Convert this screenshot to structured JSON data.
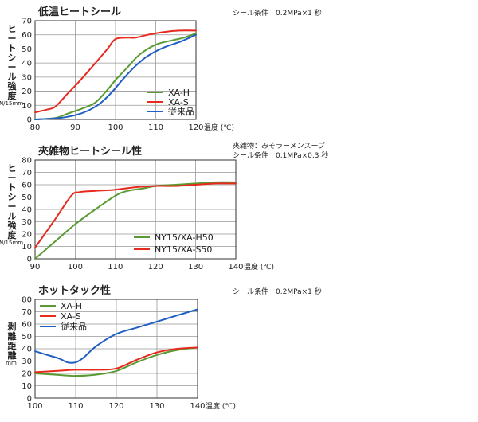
{
  "chart_data": [
    {
      "type": "line",
      "title": "低温ヒートシール",
      "condition": [
        "シール条件　0.2MPa×1 秒"
      ],
      "ylabel": "ヒートシール強度",
      "yunit": "N/15mm",
      "xlabel": "温度 (℃)",
      "xlim": [
        80,
        120
      ],
      "ylim": [
        0,
        70
      ],
      "xticks": [
        80,
        90,
        100,
        110,
        120
      ],
      "yticks": [
        0,
        10,
        20,
        30,
        40,
        50,
        60,
        70
      ],
      "grid": true,
      "legend": "bottom-right",
      "series": [
        {
          "name": "XA-H",
          "color": "#5a9a32",
          "points": [
            [
              80,
              0
            ],
            [
              85,
              1
            ],
            [
              88,
              4
            ],
            [
              92,
              8
            ],
            [
              95,
              12
            ],
            [
              98,
              21
            ],
            [
              100,
              28
            ],
            [
              103,
              37
            ],
            [
              106,
              46
            ],
            [
              110,
              53
            ],
            [
              114,
              56
            ],
            [
              117,
              58
            ],
            [
              120,
              61
            ]
          ]
        },
        {
          "name": "XA-S",
          "color": "#e62a1e",
          "points": [
            [
              80,
              5
            ],
            [
              83,
              7
            ],
            [
              85,
              9
            ],
            [
              88,
              18
            ],
            [
              91,
              27
            ],
            [
              95,
              40
            ],
            [
              98,
              50
            ],
            [
              100,
              57
            ],
            [
              103,
              58
            ],
            [
              105,
              58
            ],
            [
              108,
              60
            ],
            [
              112,
              62
            ],
            [
              116,
              63
            ],
            [
              120,
              63
            ]
          ]
        },
        {
          "name": "従来品",
          "color": "#1f5fc4",
          "points": [
            [
              80,
              0
            ],
            [
              86,
              1
            ],
            [
              90,
              3
            ],
            [
              93,
              6
            ],
            [
              96,
              11
            ],
            [
              99,
              19
            ],
            [
              102,
              29
            ],
            [
              105,
              38
            ],
            [
              108,
              45
            ],
            [
              112,
              51
            ],
            [
              116,
              55
            ],
            [
              120,
              60
            ]
          ]
        }
      ]
    },
    {
      "type": "line",
      "title": "夾雑物ヒートシール性",
      "condition": [
        "夾雑物：みそラーメンスープ",
        "シール条件　0.1MPa×0.3 秒"
      ],
      "ylabel": "ヒートシール強度",
      "yunit": "N/15mm",
      "xlabel": "温度 (℃)",
      "xlim": [
        90,
        140
      ],
      "ylim": [
        0,
        80
      ],
      "xticks": [
        90,
        100,
        110,
        120,
        130,
        140
      ],
      "yticks": [
        0,
        10,
        20,
        30,
        40,
        50,
        60,
        70,
        80
      ],
      "grid": true,
      "legend": "bottom-right",
      "series": [
        {
          "name": "NY15/XA-H50",
          "color": "#5a9a32",
          "points": [
            [
              90,
              0
            ],
            [
              95,
              14
            ],
            [
              100,
              28
            ],
            [
              105,
              40
            ],
            [
              110,
              51
            ],
            [
              113,
              55
            ],
            [
              117,
              57
            ],
            [
              120,
              59
            ],
            [
              125,
              60
            ],
            [
              130,
              61
            ],
            [
              135,
              62
            ],
            [
              140,
              62
            ]
          ]
        },
        {
          "name": "NY15/XA-S50",
          "color": "#e62a1e",
          "points": [
            [
              90,
              9
            ],
            [
              95,
              32
            ],
            [
              99,
              51
            ],
            [
              101,
              54
            ],
            [
              105,
              55
            ],
            [
              110,
              56
            ],
            [
              115,
              58
            ],
            [
              120,
              59
            ],
            [
              125,
              59
            ],
            [
              130,
              60
            ],
            [
              135,
              61
            ],
            [
              140,
              61
            ]
          ]
        }
      ]
    },
    {
      "type": "line",
      "title": "ホットタック性",
      "condition": [
        "シール条件　0.2MPa×1 秒"
      ],
      "ylabel": "剥離距離",
      "yunit": "mm",
      "xlabel": "温度 (℃)",
      "xlim": [
        100,
        140
      ],
      "ylim": [
        0,
        80
      ],
      "xticks": [
        100,
        110,
        120,
        130,
        140
      ],
      "yticks": [
        0,
        10,
        20,
        30,
        40,
        50,
        60,
        70,
        80
      ],
      "grid": true,
      "legend": "top-left",
      "series": [
        {
          "name": "XA-H",
          "color": "#5a9a32",
          "points": [
            [
              100,
              20
            ],
            [
              105,
              19
            ],
            [
              110,
              18
            ],
            [
              115,
              19
            ],
            [
              120,
              22
            ],
            [
              125,
              29
            ],
            [
              130,
              35
            ],
            [
              135,
              39
            ],
            [
              140,
              41
            ]
          ]
        },
        {
          "name": "XA-S",
          "color": "#e62a1e",
          "points": [
            [
              100,
              21
            ],
            [
              105,
              22
            ],
            [
              110,
              23
            ],
            [
              115,
              23
            ],
            [
              120,
              24
            ],
            [
              125,
              31
            ],
            [
              130,
              37
            ],
            [
              135,
              40
            ],
            [
              140,
              41
            ]
          ]
        },
        {
          "name": "従来品",
          "color": "#1f5fc4",
          "points": [
            [
              100,
              38
            ],
            [
              103,
              35
            ],
            [
              106,
              32
            ],
            [
              108,
              29
            ],
            [
              110,
              29
            ],
            [
              112,
              33
            ],
            [
              115,
              42
            ],
            [
              120,
              52
            ],
            [
              125,
              57
            ],
            [
              130,
              62
            ],
            [
              135,
              67
            ],
            [
              140,
              72
            ]
          ]
        }
      ]
    }
  ]
}
